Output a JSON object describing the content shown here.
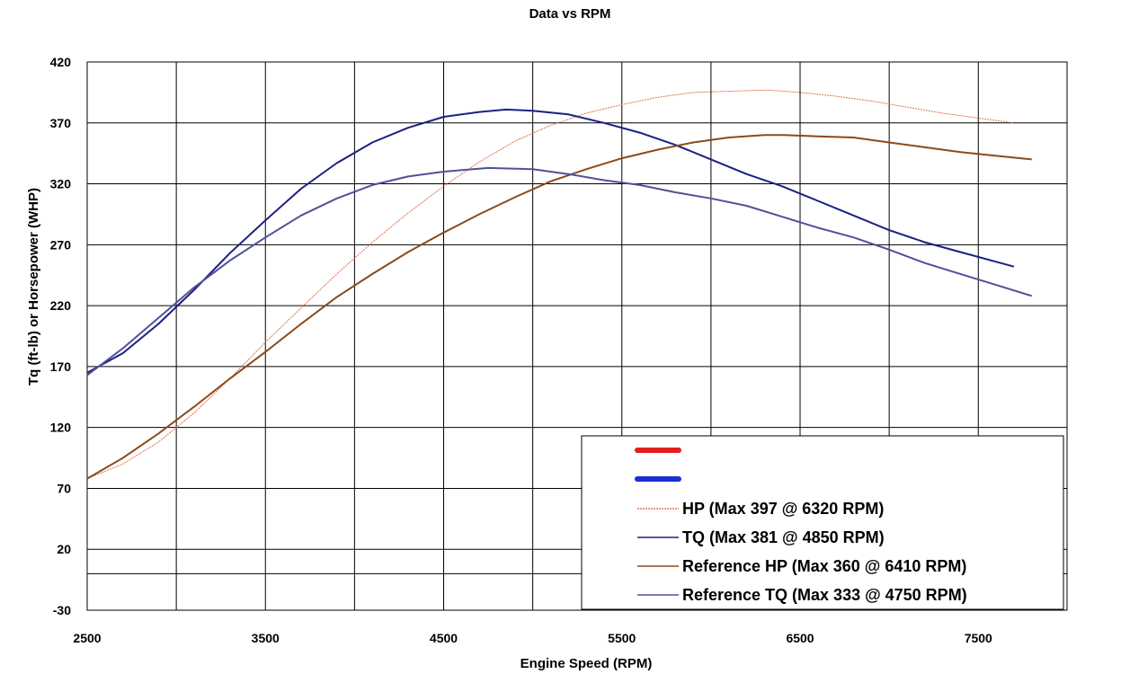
{
  "chart_data": {
    "type": "line",
    "title": "Data vs RPM",
    "xlabel": "Engine Speed (RPM)",
    "ylabel": "Tq (ft-lb) or Horsepower (WHP)",
    "xlim": [
      2500,
      7998
    ],
    "ylim": [
      -30,
      420
    ],
    "xticks": [
      2500,
      3500,
      4500,
      5500,
      6500,
      7500
    ],
    "yticks": [
      -30,
      20,
      70,
      120,
      170,
      220,
      270,
      320,
      370,
      420
    ],
    "grid": true,
    "legend_position": "bottom-right",
    "legend_swatches": [
      {
        "color": "#e02020"
      },
      {
        "color": "#1a2fd0"
      }
    ],
    "series": [
      {
        "name": "HP (Max 397 @ 6320 RPM)",
        "color": "#e07050",
        "x": [
          2500,
          2700,
          2900,
          3100,
          3300,
          3500,
          3700,
          3900,
          4100,
          4300,
          4500,
          4700,
          4900,
          5100,
          5300,
          5500,
          5700,
          5900,
          6100,
          6320,
          6500,
          6700,
          6900,
          7100,
          7300,
          7500,
          7700
        ],
        "y": [
          78,
          90,
          108,
          132,
          160,
          190,
          218,
          246,
          272,
          296,
          318,
          338,
          355,
          368,
          378,
          385,
          391,
          395,
          396,
          397,
          395,
          392,
          388,
          383,
          378,
          374,
          370
        ]
      },
      {
        "name": "TQ (Max 381 @ 4850 RPM)",
        "color": "#1a2080",
        "x": [
          2500,
          2700,
          2900,
          3100,
          3300,
          3500,
          3700,
          3900,
          4100,
          4300,
          4500,
          4700,
          4850,
          5000,
          5200,
          5400,
          5600,
          5800,
          6000,
          6200,
          6400,
          6600,
          6800,
          7000,
          7200,
          7400,
          7600,
          7700
        ],
        "y": [
          165,
          181,
          205,
          233,
          263,
          290,
          316,
          337,
          354,
          366,
          375,
          379,
          381,
          380,
          377,
          370,
          362,
          352,
          340,
          328,
          318,
          306,
          294,
          282,
          272,
          264,
          256,
          252
        ]
      },
      {
        "name": "Reference HP (Max 360 @ 6410 RPM)",
        "color": "#8b4a1a",
        "x": [
          2500,
          2700,
          2900,
          3100,
          3300,
          3500,
          3700,
          3900,
          4100,
          4300,
          4500,
          4700,
          4900,
          5100,
          5300,
          5500,
          5700,
          5900,
          6100,
          6300,
          6410,
          6600,
          6800,
          7000,
          7200,
          7400,
          7600,
          7800
        ],
        "y": [
          78,
          95,
          115,
          137,
          160,
          182,
          205,
          227,
          246,
          264,
          280,
          295,
          309,
          322,
          332,
          341,
          348,
          354,
          358,
          360,
          360,
          359,
          358,
          354,
          350,
          346,
          343,
          340
        ]
      },
      {
        "name": "Reference TQ (Max 333 @ 4750 RPM)",
        "color": "#50509a",
        "x": [
          2500,
          2700,
          2900,
          3100,
          3300,
          3500,
          3700,
          3900,
          4100,
          4300,
          4500,
          4750,
          5000,
          5200,
          5400,
          5600,
          5800,
          6000,
          6200,
          6400,
          6600,
          6800,
          7000,
          7200,
          7400,
          7600,
          7800
        ],
        "y": [
          163,
          185,
          210,
          235,
          257,
          276,
          294,
          308,
          319,
          326,
          330,
          333,
          332,
          328,
          323,
          319,
          313,
          308,
          302,
          293,
          284,
          276,
          266,
          255,
          246,
          237,
          228
        ]
      }
    ]
  }
}
